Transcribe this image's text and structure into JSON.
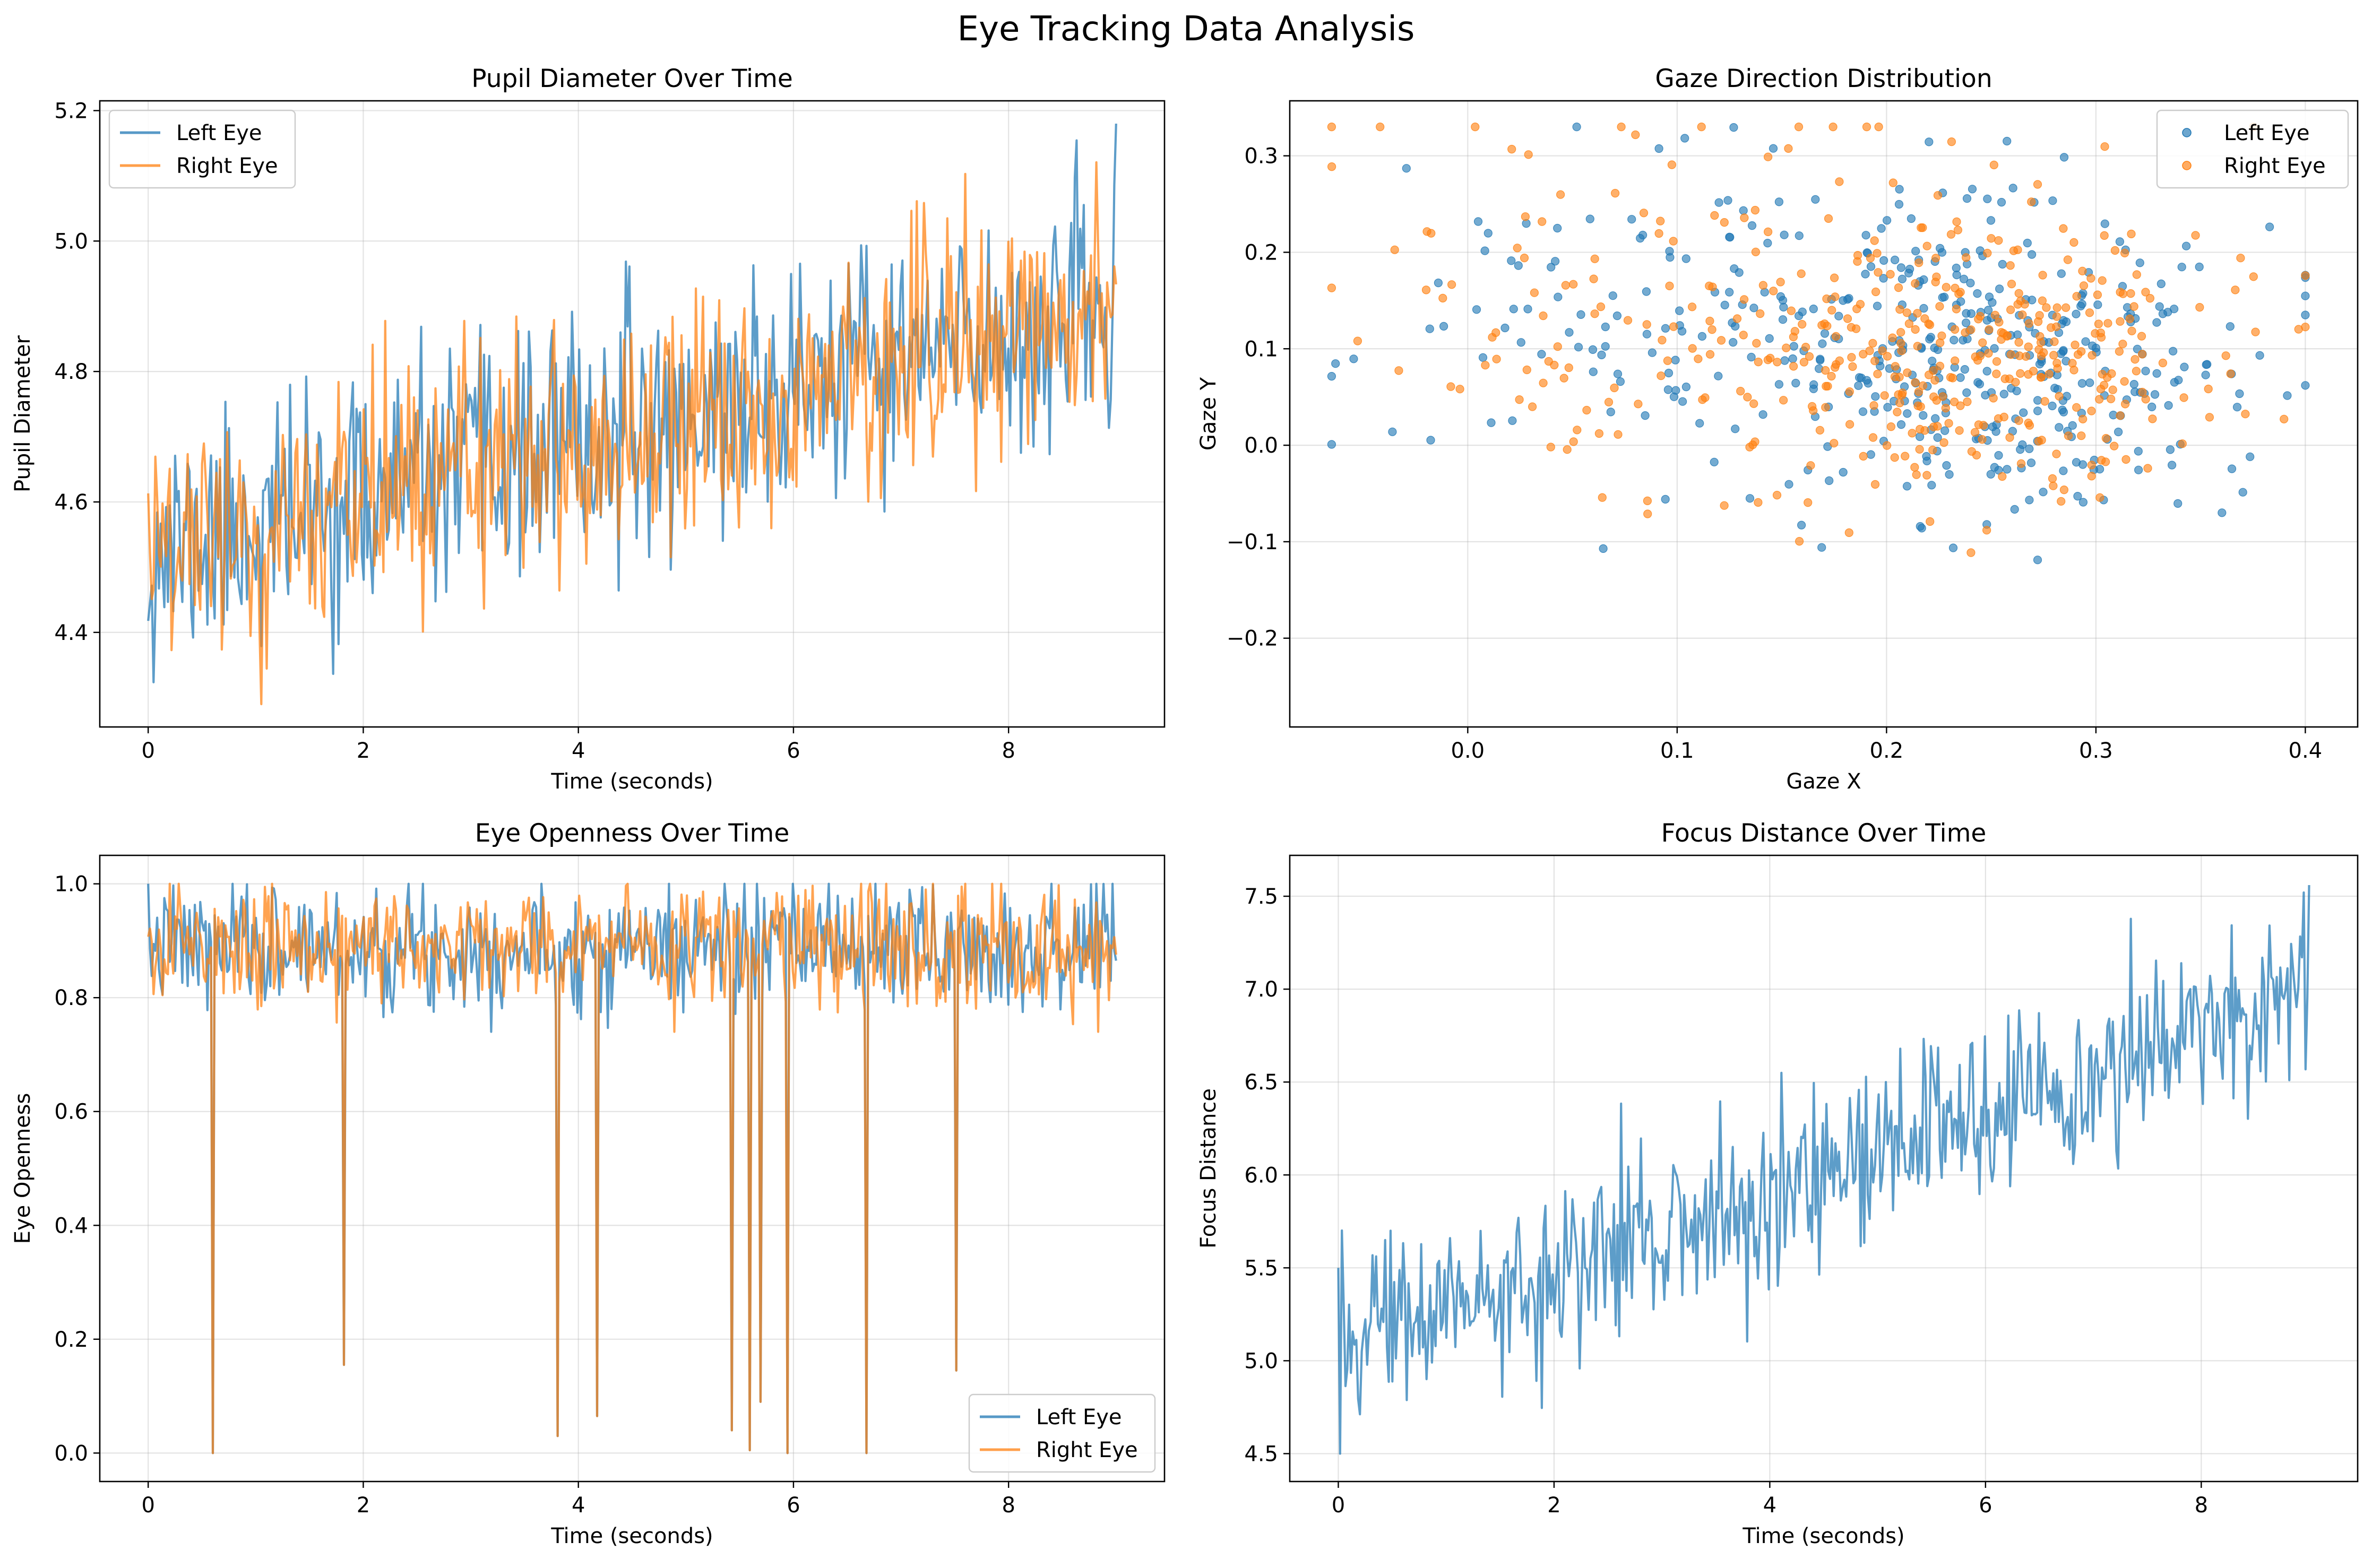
{
  "figure": {
    "title": "Eye Tracking Data Analysis"
  },
  "colors": {
    "left": "#1f77b4",
    "right": "#ff7f0e",
    "grid": "#b0b0b0",
    "frame": "#000000"
  },
  "chart_data": [
    {
      "id": "pupil",
      "type": "line",
      "title": "Pupil Diameter Over Time",
      "xlabel": "Time (seconds)",
      "ylabel": "Pupil Diameter",
      "xlim": [
        -0.45,
        9.45
      ],
      "ylim": [
        4.255,
        5.215
      ],
      "xticks": [
        0,
        2,
        4,
        6,
        8
      ],
      "yticks": [
        4.4,
        4.6,
        4.8,
        5.0,
        5.2
      ],
      "ytick_labels": [
        "4.4",
        "4.6",
        "4.8",
        "5.0",
        "5.2"
      ],
      "grid": true,
      "legend": "upper-left",
      "x_range": [
        0,
        9
      ],
      "samples": 540,
      "series": [
        {
          "name": "Left Eye",
          "color_key": "left",
          "trend_start": 4.52,
          "trend_end": 4.9,
          "noise": 0.12,
          "min": 4.29,
          "max": 5.18
        },
        {
          "name": "Right Eye",
          "color_key": "right",
          "trend_start": 4.52,
          "trend_end": 4.9,
          "noise": 0.12,
          "min": 4.29,
          "max": 5.17
        }
      ]
    },
    {
      "id": "gaze",
      "type": "scatter",
      "title": "Gaze Direction Distribution",
      "xlabel": "Gaze X",
      "ylabel": "Gaze Y",
      "xlim": [
        -0.085,
        0.425
      ],
      "ylim": [
        -0.292,
        0.357
      ],
      "xticks": [
        0.0,
        0.1,
        0.2,
        0.3,
        0.4
      ],
      "xtick_labels": [
        "0.0",
        "0.1",
        "0.2",
        "0.3",
        "0.4"
      ],
      "yticks": [
        -0.2,
        -0.1,
        0.0,
        0.1,
        0.2,
        0.3
      ],
      "ytick_labels": [
        "−0.2",
        "−0.1",
        "0.0",
        "0.1",
        "0.2",
        "0.3"
      ],
      "grid": true,
      "legend": "upper-right",
      "points_per_series": 450,
      "x_range": [
        -0.065,
        0.4
      ],
      "y_range": [
        -0.26,
        0.33
      ],
      "series": [
        {
          "name": "Left Eye",
          "color_key": "left"
        },
        {
          "name": "Right Eye",
          "color_key": "right"
        }
      ]
    },
    {
      "id": "openness",
      "type": "line",
      "title": "Eye Openness Over Time",
      "xlabel": "Time (seconds)",
      "ylabel": "Eye Openness",
      "xlim": [
        -0.45,
        9.45
      ],
      "ylim": [
        -0.05,
        1.05
      ],
      "xticks": [
        0,
        2,
        4,
        6,
        8
      ],
      "yticks": [
        0.0,
        0.2,
        0.4,
        0.6,
        0.8,
        1.0
      ],
      "ytick_labels": [
        "0.0",
        "0.2",
        "0.4",
        "0.6",
        "0.8",
        "1.0"
      ],
      "grid": true,
      "legend": "lower-right",
      "x_range": [
        0,
        9
      ],
      "samples": 540,
      "baseline": 0.89,
      "noise": 0.055,
      "blinks": [
        {
          "t": 0.6,
          "value": 0.0
        },
        {
          "t": 1.82,
          "value": 0.155
        },
        {
          "t": 3.8,
          "value": 0.03
        },
        {
          "t": 4.17,
          "value": 0.065
        },
        {
          "t": 5.42,
          "value": 0.04
        },
        {
          "t": 5.6,
          "value": 0.005
        },
        {
          "t": 5.7,
          "value": 0.09
        },
        {
          "t": 5.95,
          "value": 0.0
        },
        {
          "t": 6.68,
          "value": 0.0
        },
        {
          "t": 7.52,
          "value": 0.145
        }
      ],
      "series": [
        {
          "name": "Left Eye",
          "color_key": "left"
        },
        {
          "name": "Right Eye",
          "color_key": "right"
        }
      ]
    },
    {
      "id": "focus",
      "type": "line",
      "title": "Focus Distance Over Time",
      "xlabel": "Time (seconds)",
      "ylabel": "Focus Distance",
      "xlim": [
        -0.45,
        9.45
      ],
      "ylim": [
        4.35,
        7.72
      ],
      "xticks": [
        0,
        2,
        4,
        6,
        8
      ],
      "yticks": [
        4.5,
        5.0,
        5.5,
        6.0,
        6.5,
        7.0,
        7.5
      ],
      "ytick_labels": [
        "4.5",
        "5.0",
        "5.5",
        "6.0",
        "6.5",
        "7.0",
        "7.5"
      ],
      "grid": true,
      "x_range": [
        0,
        9
      ],
      "samples": 540,
      "series": [
        {
          "color_key": "left",
          "trend_start": 5.1,
          "trend_end": 6.95,
          "noise": 0.28,
          "min": 4.5,
          "max": 7.56
        }
      ]
    }
  ]
}
